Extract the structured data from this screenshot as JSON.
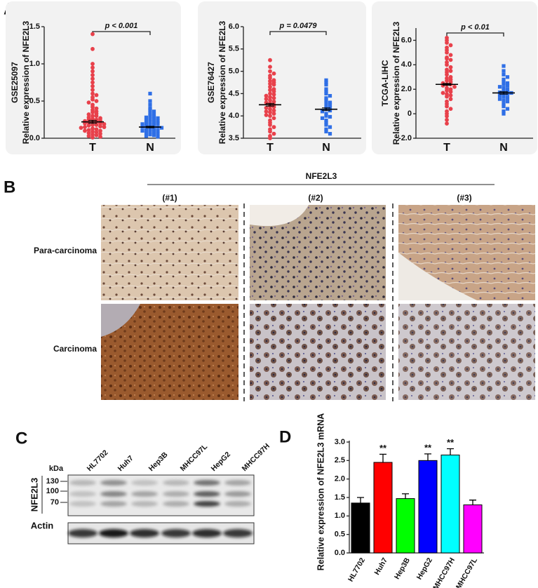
{
  "panel_labels": [
    "A",
    "B",
    "C",
    "D"
  ],
  "chart_data": [
    {
      "type": "strip",
      "dataset": "GSE25097",
      "ylabel": "Relative expression of NFE2L3",
      "annotation": "p < 0.001",
      "ylim": [
        0,
        1.5
      ],
      "yticks": [
        {
          "value": 0,
          "label": "0.0"
        },
        0.5,
        {
          "value": 1,
          "label": "1.0"
        },
        1.5
      ],
      "groups": [
        {
          "label": "T",
          "color": "#e8414b",
          "marker": "circle",
          "mean": 0.22,
          "sem": 0.02,
          "values": [
            1.4,
            1.2,
            1.0,
            0.95,
            0.9,
            0.85,
            0.8,
            0.75,
            0.7,
            0.65,
            0.6,
            0.58,
            0.55,
            0.52,
            0.5,
            0.48,
            0.45,
            0.42,
            0.4,
            0.38,
            0.36,
            0.35,
            0.33,
            0.32,
            0.3,
            0.3,
            0.28,
            0.27,
            0.26,
            0.25,
            0.25,
            0.24,
            0.23,
            0.22,
            0.22,
            0.21,
            0.2,
            0.2,
            0.19,
            0.18,
            0.18,
            0.17,
            0.16,
            0.15,
            0.15,
            0.14,
            0.13,
            0.12,
            0.11,
            0.1,
            0.1,
            0.09,
            0.08,
            0.07,
            0.06,
            0.05,
            0.04,
            0.03,
            0.02,
            0.01
          ]
        },
        {
          "label": "N",
          "color": "#2f6fe6",
          "marker": "square",
          "mean": 0.15,
          "sem": 0.01,
          "values": [
            0.6,
            0.5,
            0.45,
            0.4,
            0.38,
            0.36,
            0.34,
            0.32,
            0.3,
            0.29,
            0.28,
            0.27,
            0.26,
            0.25,
            0.24,
            0.23,
            0.22,
            0.21,
            0.2,
            0.2,
            0.19,
            0.18,
            0.17,
            0.16,
            0.15,
            0.15,
            0.14,
            0.13,
            0.12,
            0.11,
            0.1,
            0.1,
            0.09,
            0.08,
            0.07,
            0.06,
            0.05,
            0.04,
            0.03,
            0.02
          ]
        }
      ]
    },
    {
      "type": "strip",
      "dataset": "GSE76427",
      "ylabel": "Relative expression of NFE2L3",
      "annotation": "p = 0.0479",
      "ylim": [
        3.5,
        6.0
      ],
      "yticks": [
        3.5,
        {
          "value": 4,
          "label": "4.0"
        },
        4.5,
        {
          "value": 5,
          "label": "5.0"
        },
        5.5,
        {
          "value": 6,
          "label": "6.0"
        }
      ],
      "groups": [
        {
          "label": "T",
          "color": "#e8414b",
          "marker": "circle",
          "mean": 4.25,
          "sem": 0.03,
          "values": [
            5.25,
            5.1,
            5.0,
            4.95,
            4.9,
            4.85,
            4.8,
            4.78,
            4.75,
            4.72,
            4.7,
            4.65,
            4.6,
            4.58,
            4.55,
            4.5,
            4.48,
            4.45,
            4.42,
            4.4,
            4.38,
            4.35,
            4.32,
            4.3,
            4.28,
            4.25,
            4.22,
            4.2,
            4.18,
            4.15,
            4.12,
            4.1,
            4.08,
            4.05,
            4.02,
            4.0,
            3.95,
            3.9,
            3.85,
            3.8,
            3.75,
            3.7,
            3.65,
            3.6,
            3.55,
            3.5
          ]
        },
        {
          "label": "N",
          "color": "#2f6fe6",
          "marker": "square",
          "mean": 4.15,
          "sem": 0.03,
          "values": [
            4.8,
            4.75,
            4.7,
            4.6,
            4.55,
            4.5,
            4.45,
            4.4,
            4.35,
            4.3,
            4.28,
            4.25,
            4.2,
            4.18,
            4.15,
            4.12,
            4.1,
            4.05,
            4.0,
            3.98,
            3.95,
            3.9,
            3.85,
            3.8,
            3.75,
            3.7,
            3.65,
            3.6
          ]
        }
      ]
    },
    {
      "type": "strip",
      "dataset": "TCGA-LIHC",
      "ylabel": "Relative expression of NFE2L3",
      "annotation": "p < 0.01",
      "ylim": [
        -2,
        7
      ],
      "yticks": [
        {
          "value": -2,
          "label": "-2.0"
        },
        0,
        {
          "value": 2,
          "label": "2.0"
        },
        {
          "value": 4,
          "label": "4.0"
        },
        {
          "value": 6,
          "label": "6.0"
        }
      ],
      "groups": [
        {
          "label": "T",
          "color": "#e8414b",
          "marker": "circle",
          "mean": 2.4,
          "sem": 0.08,
          "values": [
            6.2,
            6.0,
            5.8,
            5.6,
            5.4,
            5.2,
            5.0,
            4.8,
            4.6,
            4.5,
            4.4,
            4.2,
            4.0,
            3.8,
            3.6,
            3.5,
            3.4,
            3.2,
            3.0,
            2.9,
            2.8,
            2.7,
            2.6,
            2.5,
            2.4,
            2.4,
            2.3,
            2.2,
            2.1,
            2.0,
            1.9,
            1.8,
            1.7,
            1.6,
            1.5,
            1.4,
            1.2,
            1.0,
            0.8,
            0.6,
            0.4,
            0.2,
            0.0,
            -0.2,
            -0.5,
            -0.8
          ]
        },
        {
          "label": "N",
          "color": "#2f6fe6",
          "marker": "square",
          "mean": 1.7,
          "sem": 0.1,
          "values": [
            3.9,
            3.5,
            3.2,
            3.0,
            2.8,
            2.6,
            2.5,
            2.4,
            2.3,
            2.2,
            2.1,
            2.0,
            1.9,
            1.8,
            1.75,
            1.7,
            1.65,
            1.6,
            1.5,
            1.4,
            1.3,
            1.2,
            1.1,
            1.0,
            0.8,
            0.6,
            0.4,
            0.2,
            0.0
          ]
        }
      ]
    },
    {
      "type": "bar",
      "ylabel": "Relative expression of NFE2L3 mRNA",
      "categories": [
        "HL7702",
        "Huh7",
        "Hep3B",
        "HepG2",
        "MHCC97H",
        "MHCC97L"
      ],
      "values": [
        1.35,
        2.45,
        1.47,
        2.5,
        2.65,
        1.3
      ],
      "errors": [
        0.15,
        0.22,
        0.13,
        0.18,
        0.17,
        0.13
      ],
      "colors": [
        "#000000",
        "#ff0000",
        "#00ff00",
        "#0000ff",
        "#00ffff",
        "#ff00ff"
      ],
      "annotations": [
        null,
        "**",
        null,
        "**",
        "**",
        null
      ],
      "ylim": [
        0,
        3.0
      ],
      "yticks": [
        {
          "value": 0,
          "label": "0.0"
        },
        0.5,
        {
          "value": 1,
          "label": "1.0"
        },
        1.5,
        {
          "value": 2,
          "label": "2.0"
        },
        2.5,
        {
          "value": 3,
          "label": "3.0"
        }
      ]
    }
  ],
  "ihc": {
    "title": "NFE2L3",
    "columns": [
      "(#1)",
      "(#2)",
      "(#3)"
    ],
    "rows": [
      "Para-carcinoma",
      "Carcinoma"
    ]
  },
  "western_blot": {
    "lanes": [
      "HL7702",
      "Huh7",
      "Hep3B",
      "MHCC97L",
      "HepG2",
      "MHCC97H"
    ],
    "unit": "kDa",
    "markers": [
      130,
      100,
      70
    ],
    "target": "NFE2L3",
    "control": "Actin"
  }
}
